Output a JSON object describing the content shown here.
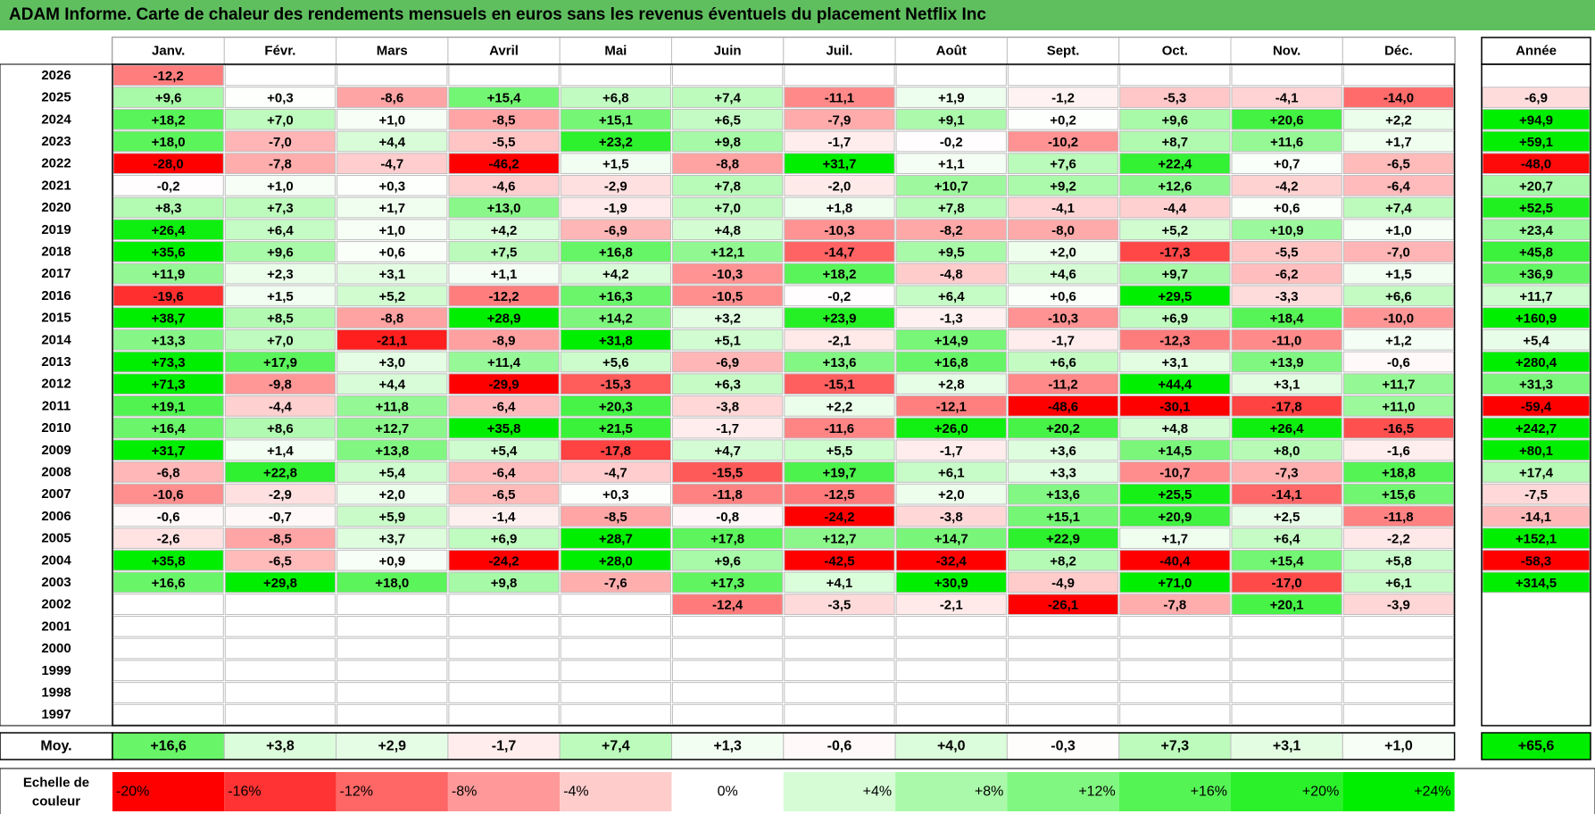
{
  "title": "ADAM Informe. Carte de chaleur des rendements mensuels en euros sans les revenus éventuels du placement Netflix Inc",
  "chart_data": {
    "type": "heatmap",
    "title": "ADAM Informe. Carte de chaleur des rendements mensuels en euros sans les revenus éventuels du placement Netflix Inc",
    "months": [
      "Janv.",
      "Févr.",
      "Mars",
      "Avril",
      "Mai",
      "Juin",
      "Juil.",
      "Août",
      "Sept.",
      "Oct.",
      "Nov.",
      "Déc."
    ],
    "annual_header": "Année",
    "rows": [
      {
        "year": "2026",
        "values": [
          -12.2,
          null,
          null,
          null,
          null,
          null,
          null,
          null,
          null,
          null,
          null,
          null
        ],
        "annual": null
      },
      {
        "year": "2025",
        "values": [
          9.6,
          0.3,
          -8.6,
          15.4,
          6.8,
          7.4,
          -11.1,
          1.9,
          -1.2,
          -5.3,
          -4.1,
          -14.0
        ],
        "annual": -6.9
      },
      {
        "year": "2024",
        "values": [
          18.2,
          7.0,
          1.0,
          -8.5,
          15.1,
          6.5,
          -7.9,
          9.1,
          0.2,
          9.6,
          20.6,
          2.2
        ],
        "annual": 94.9
      },
      {
        "year": "2023",
        "values": [
          18.0,
          -7.0,
          4.4,
          -5.5,
          23.2,
          9.8,
          -1.7,
          -0.2,
          -10.2,
          8.7,
          11.6,
          1.7
        ],
        "annual": 59.1
      },
      {
        "year": "2022",
        "values": [
          -28.0,
          -7.8,
          -4.7,
          -46.2,
          1.5,
          -8.8,
          31.7,
          1.1,
          7.6,
          22.4,
          0.7,
          -6.5
        ],
        "annual": -48.0
      },
      {
        "year": "2021",
        "values": [
          -0.2,
          1.0,
          0.3,
          -4.6,
          -2.9,
          7.8,
          -2.0,
          10.7,
          9.2,
          12.6,
          -4.2,
          -6.4
        ],
        "annual": 20.7
      },
      {
        "year": "2020",
        "values": [
          8.3,
          7.3,
          1.7,
          13.0,
          -1.9,
          7.0,
          1.8,
          7.8,
          -4.1,
          -4.4,
          0.6,
          7.4
        ],
        "annual": 52.5
      },
      {
        "year": "2019",
        "values": [
          26.4,
          6.4,
          1.0,
          4.2,
          -6.9,
          4.8,
          -10.3,
          -8.2,
          -8.0,
          5.2,
          10.9,
          1.0
        ],
        "annual": 23.4
      },
      {
        "year": "2018",
        "values": [
          35.6,
          9.6,
          0.6,
          7.5,
          16.8,
          12.1,
          -14.7,
          9.5,
          2.0,
          -17.3,
          -5.5,
          -7.0
        ],
        "annual": 45.8
      },
      {
        "year": "2017",
        "values": [
          11.9,
          2.3,
          3.1,
          1.1,
          4.2,
          -10.3,
          18.2,
          -4.8,
          4.6,
          9.7,
          -6.2,
          1.5
        ],
        "annual": 36.9
      },
      {
        "year": "2016",
        "values": [
          -19.6,
          1.5,
          5.2,
          -12.2,
          16.3,
          -10.5,
          -0.2,
          6.4,
          0.6,
          29.5,
          -3.3,
          6.6
        ],
        "annual": 11.7
      },
      {
        "year": "2015",
        "values": [
          38.7,
          8.5,
          -8.8,
          28.9,
          14.2,
          3.2,
          23.9,
          -1.3,
          -10.3,
          6.9,
          18.4,
          -10.0
        ],
        "annual": 160.9
      },
      {
        "year": "2014",
        "values": [
          13.3,
          7.0,
          -21.1,
          -8.9,
          31.8,
          5.1,
          -2.1,
          14.9,
          -1.7,
          -12.3,
          -11.0,
          1.2
        ],
        "annual": 5.4
      },
      {
        "year": "2013",
        "values": [
          73.3,
          17.9,
          3.0,
          11.4,
          5.6,
          -6.9,
          13.6,
          16.8,
          6.6,
          3.1,
          13.9,
          -0.6
        ],
        "annual": 280.4
      },
      {
        "year": "2012",
        "values": [
          71.3,
          -9.8,
          4.4,
          -29.9,
          -15.3,
          6.3,
          -15.1,
          2.8,
          -11.2,
          44.4,
          3.1,
          11.7
        ],
        "annual": 31.3
      },
      {
        "year": "2011",
        "values": [
          19.1,
          -4.4,
          11.8,
          -6.4,
          20.3,
          -3.8,
          2.2,
          -12.1,
          -48.6,
          -30.1,
          -17.8,
          11.0
        ],
        "annual": -59.4
      },
      {
        "year": "2010",
        "values": [
          16.4,
          8.6,
          12.7,
          35.8,
          21.5,
          -1.7,
          -11.6,
          26.0,
          20.2,
          4.8,
          26.4,
          -16.5
        ],
        "annual": 242.7
      },
      {
        "year": "2009",
        "values": [
          31.7,
          1.4,
          13.8,
          5.4,
          -17.8,
          4.7,
          5.5,
          -1.7,
          3.6,
          14.5,
          8.0,
          -1.6
        ],
        "annual": 80.1
      },
      {
        "year": "2008",
        "values": [
          -6.8,
          22.8,
          5.4,
          -6.4,
          -4.7,
          -15.5,
          19.7,
          6.1,
          3.3,
          -10.7,
          -7.3,
          18.8
        ],
        "annual": 17.4
      },
      {
        "year": "2007",
        "values": [
          -10.6,
          -2.9,
          2.0,
          -6.5,
          0.3,
          -11.8,
          -12.5,
          2.0,
          13.6,
          25.5,
          -14.1,
          15.6
        ],
        "annual": -7.5
      },
      {
        "year": "2006",
        "values": [
          -0.6,
          -0.7,
          5.9,
          -1.4,
          -8.5,
          -0.8,
          -24.2,
          -3.8,
          15.1,
          20.9,
          2.5,
          -11.8
        ],
        "annual": -14.1
      },
      {
        "year": "2005",
        "values": [
          -2.6,
          -8.5,
          3.7,
          6.9,
          28.7,
          17.8,
          12.7,
          14.7,
          22.9,
          1.7,
          6.4,
          -2.2
        ],
        "annual": 152.1
      },
      {
        "year": "2004",
        "values": [
          35.8,
          -6.5,
          0.9,
          -24.2,
          28.0,
          9.6,
          -42.5,
          -32.4,
          8.2,
          -40.4,
          15.4,
          5.8
        ],
        "annual": -58.3
      },
      {
        "year": "2003",
        "values": [
          16.6,
          29.8,
          18.0,
          9.8,
          -7.6,
          17.3,
          4.1,
          30.9,
          -4.9,
          71.0,
          -17.0,
          6.1
        ],
        "annual": 314.5
      },
      {
        "year": "2002",
        "values": [
          null,
          null,
          null,
          null,
          null,
          -12.4,
          -3.5,
          -2.1,
          -26.1,
          -7.8,
          20.1,
          -3.9
        ],
        "annual": null
      },
      {
        "year": "2001",
        "values": [
          null,
          null,
          null,
          null,
          null,
          null,
          null,
          null,
          null,
          null,
          null,
          null
        ],
        "annual": null
      },
      {
        "year": "2000",
        "values": [
          null,
          null,
          null,
          null,
          null,
          null,
          null,
          null,
          null,
          null,
          null,
          null
        ],
        "annual": null
      },
      {
        "year": "1999",
        "values": [
          null,
          null,
          null,
          null,
          null,
          null,
          null,
          null,
          null,
          null,
          null,
          null
        ],
        "annual": null
      },
      {
        "year": "1998",
        "values": [
          null,
          null,
          null,
          null,
          null,
          null,
          null,
          null,
          null,
          null,
          null,
          null
        ],
        "annual": null
      },
      {
        "year": "1997",
        "values": [
          null,
          null,
          null,
          null,
          null,
          null,
          null,
          null,
          null,
          null,
          null,
          null
        ],
        "annual": null
      }
    ],
    "average": {
      "label": "Moy.",
      "values": [
        16.6,
        3.8,
        2.9,
        -1.7,
        7.4,
        1.3,
        -0.6,
        4.0,
        -0.3,
        7.3,
        3.1,
        1.0
      ],
      "annual": 65.6
    },
    "scale": {
      "label_lines": [
        "Echelle de",
        "couleur"
      ],
      "stops": [
        -20,
        -16,
        -12,
        -8,
        -4,
        0,
        4,
        8,
        12,
        16,
        20,
        24
      ],
      "labels": [
        "-20%",
        "-16%",
        "-12%",
        "-8%",
        "-4%",
        "0%",
        "+4%",
        "+8%",
        "+12%",
        "+16%",
        "+20%",
        "+24%"
      ]
    },
    "colors": {
      "title_bg": "#5fbf5f",
      "neg_max": "#ff0000",
      "pos_max": "#00ee00",
      "neutral": "#ffffff",
      "grid": "#bfbfbf",
      "border": "#000000"
    }
  }
}
